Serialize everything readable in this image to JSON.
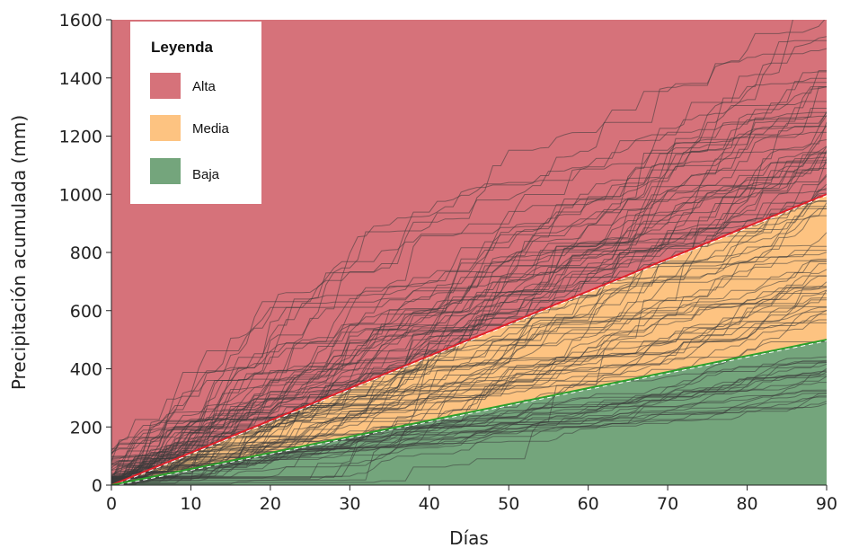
{
  "chart_data": {
    "type": "area",
    "xlabel": "Días",
    "ylabel": "Precipitación acumulada (mm)",
    "xlim": [
      0,
      90
    ],
    "ylim": [
      0,
      1600
    ],
    "x_ticks": [
      0,
      10,
      20,
      30,
      40,
      50,
      60,
      70,
      80,
      90
    ],
    "y_ticks": [
      0,
      200,
      400,
      600,
      800,
      1000,
      1200,
      1400,
      1600
    ],
    "grid": false,
    "legend": {
      "title": "Leyenda",
      "position": "top-left",
      "entries": [
        {
          "label": "Alta",
          "color": "#d6727a"
        },
        {
          "label": "Media",
          "color": "#fdc381"
        },
        {
          "label": "Baja",
          "color": "#74a57c"
        }
      ]
    },
    "bands": [
      {
        "name": "Baja",
        "color": "#74a57c",
        "x": [
          0,
          90
        ],
        "lower": [
          0,
          0
        ],
        "upper": [
          0,
          500
        ]
      },
      {
        "name": "Media",
        "color": "#fdc381",
        "x": [
          0,
          90
        ],
        "lower": [
          0,
          500
        ],
        "upper": [
          0,
          1000
        ]
      },
      {
        "name": "Alta",
        "color": "#d6727a",
        "x": [
          0,
          90
        ],
        "lower": [
          0,
          1000
        ],
        "upper": [
          1600,
          1600
        ]
      }
    ],
    "threshold_lines": [
      {
        "x": [
          0,
          90
        ],
        "y": [
          0,
          1000
        ],
        "color": "#e0202a"
      },
      {
        "x": [
          0,
          90
        ],
        "y": [
          0,
          500
        ],
        "color": "#2ca02c"
      }
    ],
    "simulated_paths": {
      "count": 100,
      "days": 90,
      "color": "#3a3a3a",
      "opacity": 0.55,
      "final_totals_range": [
        280,
        1650
      ],
      "start_range": [
        0,
        130
      ]
    }
  }
}
